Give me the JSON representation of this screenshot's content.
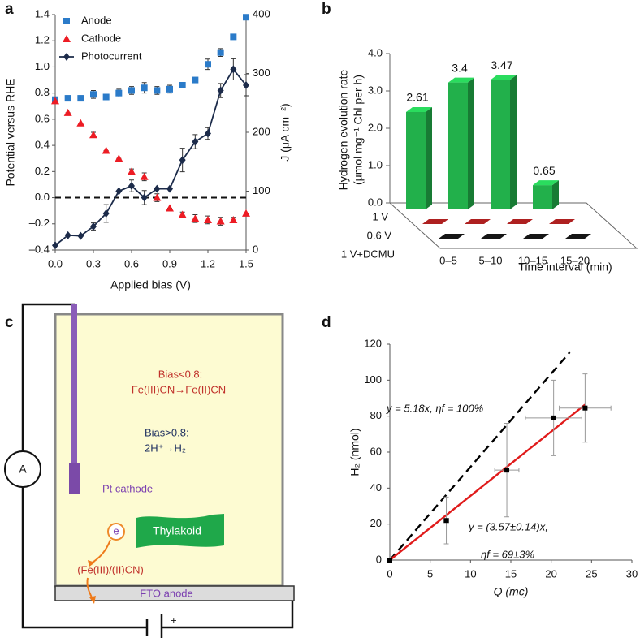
{
  "chart_data": [
    {
      "panel": "a",
      "type": "line",
      "x": [
        0,
        0.1,
        0.2,
        0.3,
        0.4,
        0.5,
        0.6,
        0.7,
        0.8,
        0.9,
        1.0,
        1.1,
        1.2,
        1.3,
        1.4,
        1.5
      ],
      "xlabel": "Applied bias (V)",
      "ylabel": "Potential versus RHE",
      "y2label": "J (μA cm⁻²)",
      "xlim": [
        0,
        1.5
      ],
      "xticks": [
        {
          "value": 0,
          "label": "0.0"
        },
        0.3,
        0.6,
        0.9,
        1.2,
        1.5
      ],
      "ylim": [
        -0.4,
        1.4
      ],
      "yticks": [
        {
          "value": -0.4,
          "label": "–0.4"
        },
        {
          "value": -0.2,
          "label": "–0.2"
        },
        {
          "value": 0,
          "label": "0.0"
        },
        0.2,
        0.4,
        0.6,
        0.8,
        {
          "value": 1,
          "label": "1.0"
        },
        1.2,
        1.4
      ],
      "y2lim": [
        0,
        400
      ],
      "y2ticks": [
        0,
        100,
        200,
        300,
        400
      ],
      "reference_line": 0,
      "legend": "upper left",
      "series": [
        {
          "name": "Anode",
          "color": "#2b7bc9",
          "marker": "square",
          "linestyle": "none",
          "values": [
            0.75,
            0.76,
            0.76,
            0.79,
            0.77,
            0.8,
            0.82,
            0.84,
            0.82,
            0.83,
            0.86,
            0.9,
            1.02,
            1.11,
            1.23,
            1.38
          ],
          "errors": [
            0,
            0.02,
            0.02,
            0.03,
            0,
            0.03,
            0.03,
            0.04,
            0.03,
            0.03,
            0,
            0,
            0.04,
            0.03,
            0,
            0
          ]
        },
        {
          "name": "Cathode",
          "color": "#ed1c24",
          "marker": "triangle",
          "linestyle": "none",
          "values": [
            0.74,
            0.65,
            0.57,
            0.48,
            0.36,
            0.3,
            0.2,
            0.16,
            0.0,
            -0.08,
            -0.13,
            -0.16,
            -0.17,
            -0.18,
            -0.17,
            -0.12
          ],
          "errors": [
            0,
            0,
            0,
            0.02,
            0,
            0,
            0.02,
            0.03,
            0.03,
            0,
            0.02,
            0.03,
            0.03,
            0.03,
            0.02,
            0
          ]
        },
        {
          "name": "Photocurrent",
          "color": "#1c2b4a",
          "marker": "diamond",
          "linestyle": "solid",
          "axis": "y2",
          "values": [
            8,
            25,
            24,
            40,
            62,
            100,
            109,
            89,
            104,
            104,
            153,
            184,
            198,
            271,
            307,
            280
          ],
          "errors": [
            0,
            0,
            0,
            6,
            15,
            0,
            10,
            12,
            0,
            0,
            20,
            12,
            10,
            12,
            18,
            18
          ]
        }
      ]
    },
    {
      "panel": "b",
      "type": "bar",
      "categories": [
        "0–5",
        "5–10",
        "10–15",
        "15–20"
      ],
      "ylabel": [
        "Hydrogen evolution rate",
        "(μmol mg⁻¹ Chl per h)"
      ],
      "xlabel": "Time interval (min)",
      "ylim": [
        0,
        4
      ],
      "yticks": [
        {
          "value": 0,
          "label": "0.0"
        },
        {
          "value": 1,
          "label": "1.0"
        },
        {
          "value": 2,
          "label": "2.0"
        },
        {
          "value": 3,
          "label": "3.0"
        },
        {
          "value": 4,
          "label": "4.0"
        }
      ],
      "series": [
        {
          "name": "1 V",
          "color": "#22b04b",
          "values": [
            2.61,
            3.4,
            3.47,
            0.65
          ],
          "labels": true
        },
        {
          "name": "0.6 V",
          "color": "#8b1a1a",
          "values": [
            0,
            0,
            0,
            0
          ]
        },
        {
          "name": "1 V+DCMU",
          "color": "#111111",
          "values": [
            0,
            0,
            0,
            0
          ]
        }
      ]
    },
    {
      "panel": "d",
      "type": "scatter",
      "x": [
        0,
        7,
        14.5,
        20.3,
        24.2
      ],
      "values": [
        0,
        22,
        50,
        79,
        84.5
      ],
      "xerr": [
        0,
        0.3,
        1.5,
        3.5,
        3.2
      ],
      "yerr": [
        0,
        13,
        26,
        21,
        19
      ],
      "color": "#000000",
      "xlabel": "Q (mc)",
      "ylabel": "H₂ (nmol)",
      "xlim": [
        0,
        30
      ],
      "xticks": [
        0,
        5,
        10,
        15,
        20,
        25,
        30
      ],
      "ylim": [
        0,
        120
      ],
      "yticks": [
        0,
        20,
        40,
        60,
        80,
        100,
        120
      ],
      "fits": [
        {
          "slope": 5.18,
          "xrange": [
            0,
            22.3
          ],
          "color": "#000000",
          "linestyle": "dashed",
          "labels": [
            "y = 5.18x,  ηf = 100%"
          ]
        },
        {
          "slope": 3.57,
          "xrange": [
            0,
            24.2
          ],
          "color": "#e01b1b",
          "linestyle": "solid",
          "labels": [
            "y = (3.57±0.14)x,",
            "ηf = 69±3%"
          ]
        }
      ]
    }
  ],
  "diagram": {
    "panel": "c",
    "ammeter": "A",
    "cathode_label": "Pt cathode",
    "note_low": [
      "Bias<0.8:",
      "Fe(III)CN→Fe(II)CN"
    ],
    "note_high": [
      "Bias>0.8:",
      "2H⁺→H₂"
    ],
    "electron": "e",
    "thylakoid": "Thylakoid",
    "mediator": "(Fe(III)/(II)CN)",
    "anode_label": "FTO anode",
    "battery_plus": "+"
  }
}
